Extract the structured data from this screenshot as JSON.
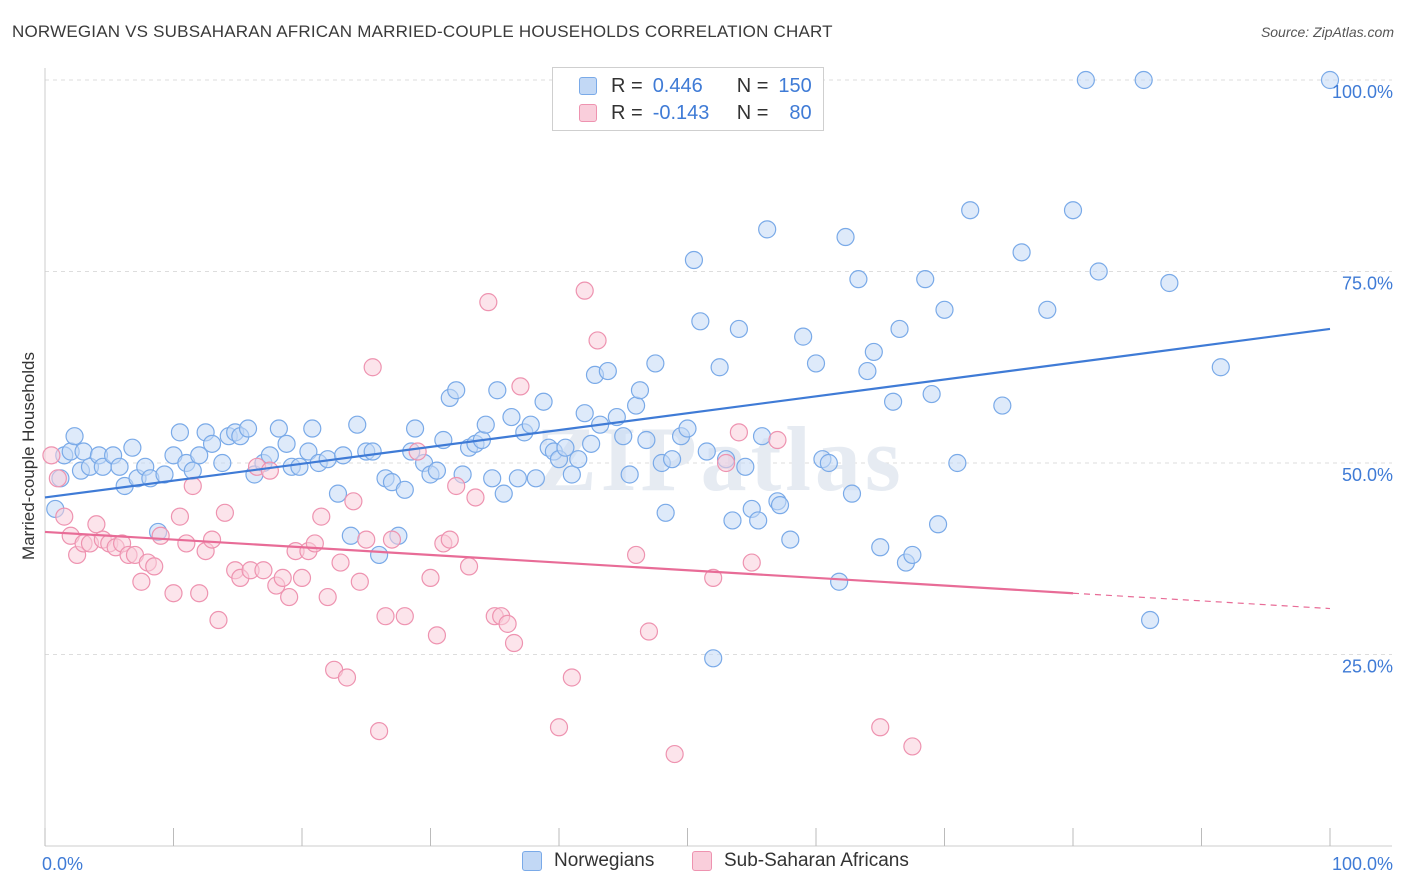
{
  "header": {
    "title": "NORWEGIAN VS SUBSAHARAN AFRICAN MARRIED-COUPLE HOUSEHOLDS CORRELATION CHART",
    "source": "Source: ZipAtlas.com"
  },
  "legend": {
    "rows": [
      {
        "r_label": "R =",
        "r_value": "0.446",
        "n_label": "N =",
        "n_value": "150",
        "color": "#7aaae8",
        "fill": "#c2d8f5"
      },
      {
        "r_label": "R =",
        "r_value": "-0.143",
        "n_label": "N =",
        "n_value": "80",
        "color": "#ee93b0",
        "fill": "#f9cedb"
      }
    ]
  },
  "bottom_legend": {
    "items": [
      {
        "label": "Norwegians",
        "color": "#7aaae8",
        "fill": "#c2d8f5"
      },
      {
        "label": "Sub-Saharan Africans",
        "color": "#ee93b0",
        "fill": "#f9cedb"
      }
    ]
  },
  "watermark": {
    "text": "ZIPatlas"
  },
  "chart_data": {
    "type": "scatter",
    "title": "NORWEGIAN VS SUBSAHARAN AFRICAN MARRIED-COUPLE HOUSEHOLDS CORRELATION CHART",
    "xlabel": "",
    "ylabel": "Married-couple Households",
    "xlim": [
      0,
      100
    ],
    "ylim": [
      0,
      102
    ],
    "x_tick_labels": [
      "0.0%",
      "100.0%"
    ],
    "y_ticks": [
      25,
      50,
      75,
      100
    ],
    "y_tick_labels": [
      "25.0%",
      "50.0%",
      "75.0%",
      "100.0%"
    ],
    "grid": true,
    "series": [
      {
        "name": "Norwegians",
        "color": "#3f7bd6",
        "fill": "#c2d8f5",
        "stroke": "#7aaae8",
        "trend": {
          "x": [
            0,
            100
          ],
          "y": [
            45.5,
            67.5
          ]
        },
        "points": [
          [
            0.8,
            44
          ],
          [
            1.2,
            48
          ],
          [
            1.5,
            51
          ],
          [
            2.0,
            51.5
          ],
          [
            2.3,
            53.5
          ],
          [
            2.8,
            49
          ],
          [
            3.0,
            51.5
          ],
          [
            3.5,
            49.5
          ],
          [
            4.2,
            51
          ],
          [
            4.5,
            49.5
          ],
          [
            5.3,
            51
          ],
          [
            5.8,
            49.5
          ],
          [
            6.2,
            47
          ],
          [
            6.8,
            52
          ],
          [
            7.2,
            48
          ],
          [
            7.8,
            49.5
          ],
          [
            8.2,
            48
          ],
          [
            8.8,
            41
          ],
          [
            9.3,
            48.5
          ],
          [
            10.0,
            51
          ],
          [
            10.5,
            54
          ],
          [
            11.0,
            50
          ],
          [
            11.5,
            49
          ],
          [
            12.0,
            51
          ],
          [
            12.5,
            54
          ],
          [
            13.0,
            52.5
          ],
          [
            13.8,
            50
          ],
          [
            14.3,
            53.5
          ],
          [
            14.8,
            54
          ],
          [
            15.2,
            53.5
          ],
          [
            15.8,
            54.5
          ],
          [
            16.3,
            48.5
          ],
          [
            17.0,
            50
          ],
          [
            17.5,
            51
          ],
          [
            18.2,
            54.5
          ],
          [
            18.8,
            52.5
          ],
          [
            19.2,
            49.5
          ],
          [
            19.8,
            49.5
          ],
          [
            20.5,
            51.5
          ],
          [
            20.8,
            54.5
          ],
          [
            21.3,
            50
          ],
          [
            22.0,
            50.5
          ],
          [
            22.8,
            46
          ],
          [
            23.2,
            51
          ],
          [
            23.8,
            40.5
          ],
          [
            24.3,
            55
          ],
          [
            25.0,
            51.5
          ],
          [
            25.5,
            51.5
          ],
          [
            26.0,
            38
          ],
          [
            26.5,
            48
          ],
          [
            27.0,
            47.5
          ],
          [
            27.5,
            40.5
          ],
          [
            28.0,
            46.5
          ],
          [
            28.5,
            51.5
          ],
          [
            28.8,
            54.5
          ],
          [
            29.5,
            50
          ],
          [
            30.0,
            48.5
          ],
          [
            30.5,
            49
          ],
          [
            31.0,
            53
          ],
          [
            31.5,
            58.5
          ],
          [
            32.0,
            59.5
          ],
          [
            32.5,
            48.5
          ],
          [
            33.0,
            52
          ],
          [
            33.5,
            52.5
          ],
          [
            34.0,
            53
          ],
          [
            34.3,
            55
          ],
          [
            34.8,
            48
          ],
          [
            35.2,
            59.5
          ],
          [
            35.7,
            46
          ],
          [
            36.3,
            56
          ],
          [
            36.8,
            48
          ],
          [
            37.3,
            54
          ],
          [
            37.8,
            55
          ],
          [
            38.2,
            48
          ],
          [
            38.8,
            58
          ],
          [
            39.2,
            52
          ],
          [
            39.6,
            51.5
          ],
          [
            40.0,
            50.5
          ],
          [
            40.5,
            52
          ],
          [
            41.0,
            48.5
          ],
          [
            41.5,
            50.5
          ],
          [
            42.0,
            56.5
          ],
          [
            42.5,
            52.5
          ],
          [
            42.8,
            61.5
          ],
          [
            43.2,
            55
          ],
          [
            43.8,
            62
          ],
          [
            44.5,
            56
          ],
          [
            45.0,
            53.5
          ],
          [
            45.5,
            48.5
          ],
          [
            46.0,
            57.5
          ],
          [
            46.3,
            59.5
          ],
          [
            46.8,
            53
          ],
          [
            47.5,
            63
          ],
          [
            48.0,
            50
          ],
          [
            48.3,
            43.5
          ],
          [
            48.8,
            50.5
          ],
          [
            49.5,
            53.5
          ],
          [
            50.0,
            54.5
          ],
          [
            50.5,
            76.5
          ],
          [
            51.0,
            68.5
          ],
          [
            51.5,
            51.5
          ],
          [
            52.0,
            24.5
          ],
          [
            52.5,
            62.5
          ],
          [
            53.0,
            50.5
          ],
          [
            53.5,
            42.5
          ],
          [
            54.0,
            67.5
          ],
          [
            54.5,
            49.5
          ],
          [
            55.0,
            44
          ],
          [
            55.5,
            42.5
          ],
          [
            55.8,
            53.5
          ],
          [
            56.2,
            80.5
          ],
          [
            57.0,
            45
          ],
          [
            57.2,
            44.5
          ],
          [
            58.0,
            40
          ],
          [
            59.0,
            66.5
          ],
          [
            60.0,
            63
          ],
          [
            60.5,
            50.5
          ],
          [
            61.0,
            50
          ],
          [
            61.8,
            34.5
          ],
          [
            62.3,
            79.5
          ],
          [
            62.8,
            46
          ],
          [
            63.3,
            74
          ],
          [
            64.0,
            62
          ],
          [
            64.5,
            64.5
          ],
          [
            65.0,
            39
          ],
          [
            66.0,
            58
          ],
          [
            66.5,
            67.5
          ],
          [
            67.0,
            37
          ],
          [
            67.5,
            38
          ],
          [
            68.5,
            74
          ],
          [
            69.0,
            59
          ],
          [
            69.5,
            42
          ],
          [
            70.0,
            70
          ],
          [
            71.0,
            50
          ],
          [
            72.0,
            83
          ],
          [
            74.5,
            57.5
          ],
          [
            76.0,
            77.5
          ],
          [
            78.0,
            70
          ],
          [
            80.0,
            83
          ],
          [
            81.0,
            100
          ],
          [
            82.0,
            75
          ],
          [
            85.5,
            100
          ],
          [
            86.0,
            29.5
          ],
          [
            87.5,
            73.5
          ],
          [
            91.5,
            62.5
          ],
          [
            100,
            100
          ]
        ]
      },
      {
        "name": "Sub-Saharan Africans",
        "color": "#e86c97",
        "fill": "#f9cedb",
        "stroke": "#ee93b0",
        "trend": {
          "x": [
            0,
            80
          ],
          "y": [
            41,
            33
          ]
        },
        "trend_dashed": {
          "x": [
            80,
            100
          ],
          "y": [
            33,
            31
          ]
        },
        "points": [
          [
            0.5,
            51
          ],
          [
            1.0,
            48
          ],
          [
            1.5,
            43
          ],
          [
            2.0,
            40.5
          ],
          [
            2.5,
            38
          ],
          [
            3.0,
            39.5
          ],
          [
            3.5,
            39.5
          ],
          [
            4.0,
            42
          ],
          [
            4.5,
            40
          ],
          [
            5.0,
            39.5
          ],
          [
            5.5,
            39
          ],
          [
            6.0,
            39.5
          ],
          [
            6.5,
            38
          ],
          [
            7.0,
            38
          ],
          [
            7.5,
            34.5
          ],
          [
            8.0,
            37
          ],
          [
            8.5,
            36.5
          ],
          [
            9.0,
            40.5
          ],
          [
            10.0,
            33
          ],
          [
            10.5,
            43
          ],
          [
            11.0,
            39.5
          ],
          [
            11.5,
            47
          ],
          [
            12.0,
            33
          ],
          [
            12.5,
            38.5
          ],
          [
            13.0,
            40
          ],
          [
            13.5,
            29.5
          ],
          [
            14.0,
            43.5
          ],
          [
            14.8,
            36
          ],
          [
            15.2,
            35
          ],
          [
            16.0,
            36
          ],
          [
            16.5,
            49.5
          ],
          [
            17.0,
            36
          ],
          [
            17.5,
            49
          ],
          [
            18.0,
            34
          ],
          [
            18.5,
            35
          ],
          [
            19.0,
            32.5
          ],
          [
            19.5,
            38.5
          ],
          [
            20.0,
            35
          ],
          [
            20.5,
            38.5
          ],
          [
            21.0,
            39.5
          ],
          [
            21.5,
            43
          ],
          [
            22.0,
            32.5
          ],
          [
            22.5,
            23
          ],
          [
            23.0,
            37
          ],
          [
            23.5,
            22
          ],
          [
            24.0,
            45
          ],
          [
            24.5,
            34.5
          ],
          [
            25.0,
            40
          ],
          [
            25.5,
            62.5
          ],
          [
            26.0,
            15
          ],
          [
            26.5,
            30
          ],
          [
            27.0,
            40
          ],
          [
            28.0,
            30
          ],
          [
            29.0,
            51.5
          ],
          [
            30.0,
            35
          ],
          [
            30.5,
            27.5
          ],
          [
            31.0,
            39.5
          ],
          [
            31.5,
            40
          ],
          [
            32.0,
            47
          ],
          [
            33.0,
            36.5
          ],
          [
            33.5,
            45.5
          ],
          [
            34.5,
            71
          ],
          [
            35.0,
            30
          ],
          [
            35.5,
            30
          ],
          [
            36.0,
            29
          ],
          [
            36.5,
            26.5
          ],
          [
            37.0,
            60
          ],
          [
            40.0,
            15.5
          ],
          [
            41.0,
            22
          ],
          [
            42.0,
            72.5
          ],
          [
            43.0,
            66
          ],
          [
            46.0,
            38
          ],
          [
            47.0,
            28
          ],
          [
            49.0,
            12
          ],
          [
            52.0,
            35
          ],
          [
            53.0,
            50
          ],
          [
            54.0,
            54
          ],
          [
            55.0,
            37
          ],
          [
            57.0,
            53
          ],
          [
            65.0,
            15.5
          ],
          [
            67.5,
            13
          ]
        ]
      }
    ]
  }
}
